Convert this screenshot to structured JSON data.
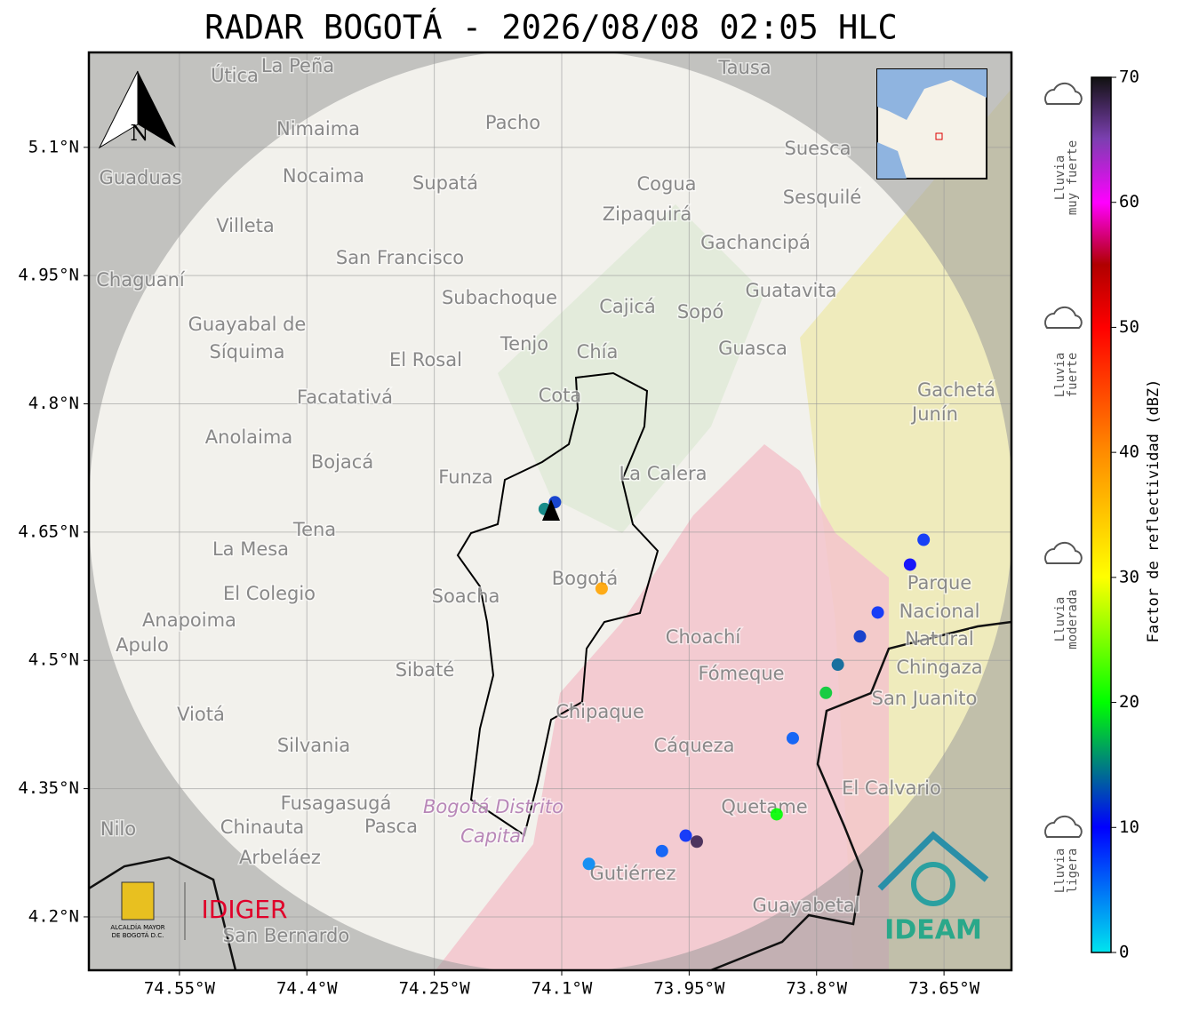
{
  "title": "RADAR BOGOTÁ - 2026/08/08 02:05 HLC",
  "map": {
    "lonlim": [
      -74.6566,
      -73.5706
    ],
    "latlim": [
      4.1376,
      5.211
    ],
    "xticks": [
      {
        "value": -74.55,
        "label": "74.55°W"
      },
      {
        "value": -74.4,
        "label": "74.4°W"
      },
      {
        "value": -74.25,
        "label": "74.25°W"
      },
      {
        "value": -74.1,
        "label": "74.1°W"
      },
      {
        "value": -73.95,
        "label": "73.95°W"
      },
      {
        "value": -73.8,
        "label": "73.8°W"
      },
      {
        "value": -73.65,
        "label": "73.65°W"
      }
    ],
    "yticks": [
      {
        "value": 5.1,
        "label": "5.1°N"
      },
      {
        "value": 4.95,
        "label": "4.95°N"
      },
      {
        "value": 4.8,
        "label": "4.8°N"
      },
      {
        "value": 4.65,
        "label": "4.65°N"
      },
      {
        "value": 4.5,
        "label": "4.5°N"
      },
      {
        "value": 4.35,
        "label": "4.35°N"
      },
      {
        "value": 4.2,
        "label": "4.2°N"
      }
    ],
    "places": [
      "Útica",
      "La Peña",
      "Tausa",
      "Pacho",
      "Nimaima",
      "Guaduas",
      "Nocaima",
      "Supatá",
      "Cogua",
      "Suesca",
      "Sesquilé",
      "Zipaquirá",
      "Villeta",
      "Gachancipá",
      "San Francisco",
      "Chaguaní",
      "Guatavita",
      "Subachoque",
      "Cajicá",
      "Sopó",
      "Guayabal de",
      "Síquima",
      "Tenjo",
      "Chía",
      "Guasca",
      "El Rosal",
      "Gachetá",
      "Junín",
      "Facatativá",
      "Cota",
      "Anolaima",
      "Bojacá",
      "Funza",
      "La Calera",
      "Tena",
      "La Mesa",
      "El Colegio",
      "Soacha",
      "Bogotá",
      "Parque",
      "Nacional",
      "Natural",
      "Chingaza",
      "Anapoima",
      "Apulo",
      "Choachí",
      "Fómeque",
      "Sibaté",
      "San Juanito",
      "Viotá",
      "Chipaque",
      "Cáqueza",
      "Silvania",
      "El Calvario",
      "Fusagasugá",
      "Quetame",
      "Pasca",
      "Chinauta",
      "Nilo",
      "Arbeláez",
      "Gutiérrez",
      "Guayabetal",
      "San Bernardo",
      "Bogotá Distrito",
      "Capital"
    ],
    "echoes": [
      {
        "lon": -74.12,
        "lat": 4.677,
        "dbz": 15
      },
      {
        "lon": -74.108,
        "lat": 4.685,
        "dbz": 12
      },
      {
        "lon": -73.674,
        "lat": 4.641,
        "dbz": 8
      },
      {
        "lon": -73.69,
        "lat": 4.612,
        "dbz": 10
      },
      {
        "lon": -73.728,
        "lat": 4.556,
        "dbz": 8
      },
      {
        "lon": -73.749,
        "lat": 4.528,
        "dbz": 12
      },
      {
        "lon": -73.775,
        "lat": 4.495,
        "dbz": 14
      },
      {
        "lon": -73.789,
        "lat": 4.462,
        "dbz": 18
      },
      {
        "lon": -73.828,
        "lat": 4.409,
        "dbz": 6
      },
      {
        "lon": -73.847,
        "lat": 4.32,
        "dbz": 20
      },
      {
        "lon": -73.941,
        "lat": 4.288,
        "dbz": 68
      },
      {
        "lon": -73.954,
        "lat": 4.295,
        "dbz": 8
      },
      {
        "lon": -73.982,
        "lat": 4.277,
        "dbz": 6
      },
      {
        "lon": -74.068,
        "lat": 4.262,
        "dbz": 4
      },
      {
        "lon": -74.053,
        "lat": 4.584,
        "dbz": 38
      }
    ]
  },
  "colorbar": {
    "label": "Factor de reflectividad (dBZ)",
    "lim": [
      0,
      70
    ],
    "ticks": [
      0,
      10,
      20,
      30,
      40,
      50,
      60,
      70
    ],
    "rain_levels": [
      [
        "Lluvia",
        "muy fuerte"
      ],
      [
        "Lluvia",
        "fuerte"
      ],
      [
        "Lluvia",
        "moderada"
      ],
      [
        "Lluvia",
        "ligera"
      ]
    ]
  },
  "north": "N",
  "logos": {
    "idiger": "IDIGER",
    "ideam": "IDEAM",
    "alcaldia": [
      "ALCALDÍA MAYOR",
      "DE BOGOTÁ D.C."
    ]
  }
}
